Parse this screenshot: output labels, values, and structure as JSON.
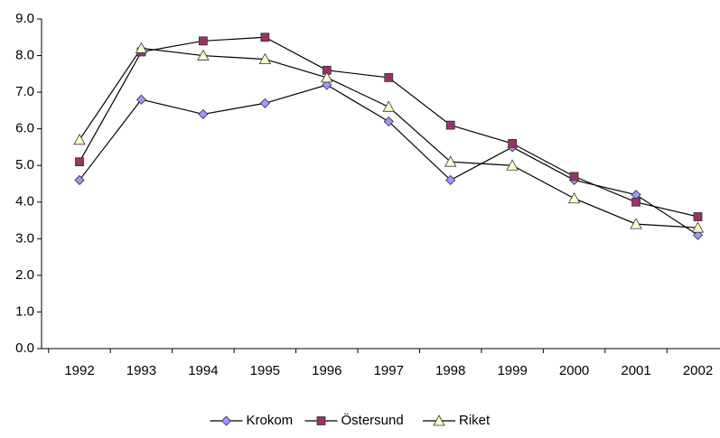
{
  "chart_data": {
    "type": "line",
    "categories": [
      "1992",
      "1993",
      "1994",
      "1995",
      "1996",
      "1997",
      "1998",
      "1999",
      "2000",
      "2001",
      "2002"
    ],
    "series": [
      {
        "name": "Krokom",
        "color": "#9999ff",
        "marker": "diamond",
        "values": [
          4.6,
          6.8,
          6.4,
          6.7,
          7.2,
          6.2,
          4.6,
          5.5,
          4.6,
          4.2,
          3.1
        ]
      },
      {
        "name": "Östersund",
        "color": "#993366",
        "marker": "square",
        "values": [
          5.1,
          8.1,
          8.4,
          8.5,
          7.6,
          7.4,
          6.1,
          5.6,
          4.7,
          4.0,
          3.6
        ]
      },
      {
        "name": "Riket",
        "color": "#ffffcc",
        "marker": "triangle",
        "values": [
          5.7,
          8.2,
          8.0,
          7.9,
          7.4,
          6.6,
          5.1,
          5.0,
          4.1,
          3.4,
          3.3
        ]
      }
    ],
    "ylim": [
      0,
      9
    ],
    "yticks": [
      {
        "value": 0,
        "label": "0.0"
      },
      {
        "value": 1,
        "label": "1.0"
      },
      {
        "value": 2,
        "label": "2.0"
      },
      {
        "value": 3,
        "label": "3.0"
      },
      {
        "value": 4,
        "label": "4.0"
      },
      {
        "value": 5,
        "label": "5.0"
      },
      {
        "value": 6,
        "label": "6.0"
      },
      {
        "value": 7,
        "label": "7.0"
      },
      {
        "value": 8,
        "label": "8.0"
      },
      {
        "value": 9,
        "label": "9.0"
      }
    ],
    "legend": "bottom",
    "line_color": "#000000"
  }
}
